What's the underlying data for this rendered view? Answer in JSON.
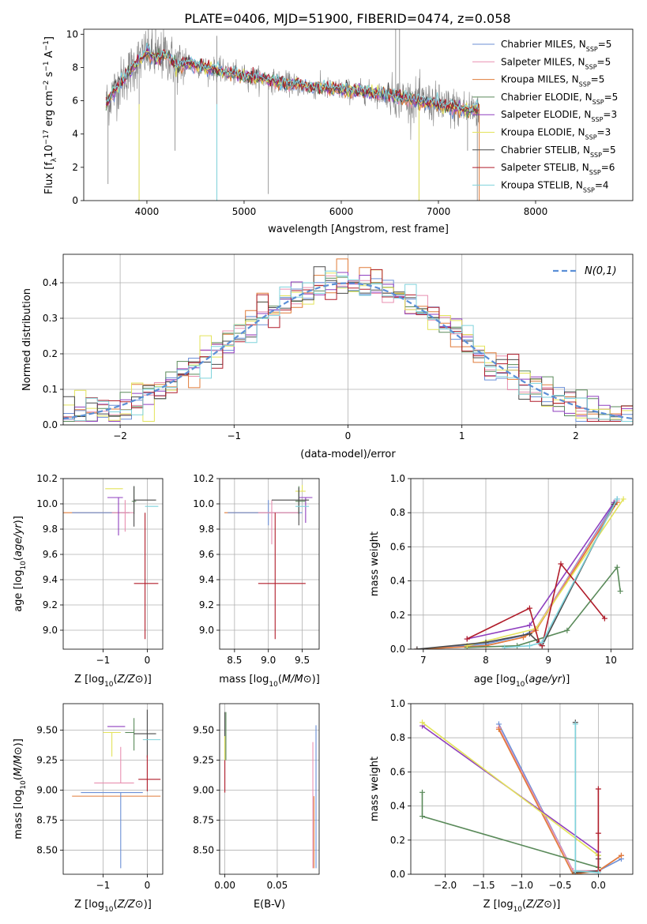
{
  "title": "PLATE=0406, MJD=51900, FIBERID=0474, z=0.058",
  "colors": {
    "blue": "#6b8fd6",
    "pink": "#e88fb0",
    "orange": "#e07b39",
    "green": "#5a8a5a",
    "purple": "#8f3fbf",
    "yellow": "#e3e35a",
    "dark": "#4a4a4a",
    "red": "#b01c2a",
    "cyan": "#7fd3dc",
    "data": "#808080",
    "normal": "#5b8fd6"
  },
  "chart_data": [
    {
      "id": "spectrum",
      "type": "line",
      "xlabel": "wavelength [Angstrom, rest frame]",
      "ylabel": "Flux [f_λ10^-17 erg cm^-2 s^-1 A^-1]",
      "xlim": [
        3350,
        9000
      ],
      "ylim": [
        0,
        10.3
      ],
      "xticks": [
        4000,
        5000,
        6000,
        7000,
        8000
      ],
      "yticks": [
        0,
        2,
        4,
        6,
        8,
        10
      ],
      "grid": false,
      "legend_position": "upper-right",
      "legend": [
        {
          "label": "Chabrier MILES, N",
          "sub": "SSP",
          "suffix": "=5",
          "color": "blue"
        },
        {
          "label": "Salpeter MILES, N",
          "sub": "SSP",
          "suffix": "=5",
          "color": "pink"
        },
        {
          "label": "Kroupa MILES, N",
          "sub": "SSP",
          "suffix": "=5",
          "color": "orange"
        },
        {
          "label": "Chabrier ELODIE, N",
          "sub": "SSP",
          "suffix": "=5",
          "color": "green"
        },
        {
          "label": "Salpeter ELODIE, N",
          "sub": "SSP",
          "suffix": "=3",
          "color": "purple"
        },
        {
          "label": "Kroupa ELODIE, N",
          "sub": "SSP",
          "suffix": "=3",
          "color": "yellow"
        },
        {
          "label": "Chabrier STELIB, N",
          "sub": "SSP",
          "suffix": "=5",
          "color": "dark"
        },
        {
          "label": "Salpeter STELIB, N",
          "sub": "SSP",
          "suffix": "=6",
          "color": "red"
        },
        {
          "label": "Kroupa STELIB, N",
          "sub": "SSP",
          "suffix": "=4",
          "color": "cyan"
        }
      ],
      "model_curve": {
        "x": [
          3580,
          3650,
          3720,
          3800,
          3880,
          3950,
          4000,
          4100,
          4200,
          4300,
          4400,
          4500,
          4700,
          4900,
          5100,
          5300,
          5500,
          5700,
          5900,
          6100,
          6300,
          6500,
          6700,
          6900,
          7100,
          7300,
          7420
        ],
        "y": [
          5.8,
          6.5,
          7.0,
          7.6,
          8.2,
          8.6,
          8.9,
          8.5,
          8.8,
          8.1,
          8.3,
          8.1,
          7.9,
          7.6,
          7.4,
          7.2,
          7.0,
          6.8,
          6.7,
          6.6,
          6.5,
          6.3,
          6.1,
          5.9,
          5.6,
          5.5,
          5.5
        ]
      },
      "observed_curve": {
        "x_start": 3580,
        "x_end": 7420,
        "y_noise_amp": 1.1,
        "spikes": [
          {
            "x": 3600,
            "y": 1.0
          },
          {
            "x": 3920,
            "y": 0
          },
          {
            "x": 4090,
            "y": 10.3
          },
          {
            "x": 4180,
            "y": 9.8
          },
          {
            "x": 4290,
            "y": 3.0
          },
          {
            "x": 4720,
            "y": 0
          },
          {
            "x": 4720,
            "y": 9.9
          },
          {
            "x": 5250,
            "y": 0.4
          },
          {
            "x": 6560,
            "y": 10.3
          },
          {
            "x": 6600,
            "y": 10.3
          },
          {
            "x": 6800,
            "y": 0
          },
          {
            "x": 7400,
            "y": 0
          },
          {
            "x": 7300,
            "y": 3.0
          }
        ]
      }
    },
    {
      "id": "residuals",
      "type": "histogram",
      "xlabel": "(data-model)/error",
      "ylabel": "Normed distribution",
      "xlim": [
        -2.5,
        2.5
      ],
      "ylim": [
        0,
        0.48
      ],
      "xticks": [
        -2,
        -1,
        0,
        1,
        2
      ],
      "yticks": [
        0.0,
        0.1,
        0.2,
        0.3,
        0.4
      ],
      "grid": true,
      "legend_position": "upper-right",
      "reference_label": "N(0,1)",
      "bin_width": 0.1,
      "bin_start": -2.5,
      "series_colors": [
        "blue",
        "pink",
        "orange",
        "green",
        "purple",
        "yellow",
        "dark",
        "red",
        "cyan"
      ]
    },
    {
      "id": "age-vs-Z",
      "type": "errorbar",
      "xlabel": "Z [log10(Z/Z⊙)]",
      "ylabel": "age  [log10(age/yr)]",
      "xlim": [
        -1.9,
        0.35
      ],
      "ylim": [
        8.85,
        10.2
      ],
      "xticks": [
        -1,
        0
      ],
      "yticks": [
        9.0,
        9.2,
        9.4,
        9.6,
        9.8,
        10.0,
        10.2
      ],
      "grid": true,
      "points": [
        {
          "color": "orange",
          "x": -0.7,
          "xerr": [
            1.8,
            0.3
          ],
          "y": 9.93,
          "yerr": [
            0.0,
            0.0
          ]
        },
        {
          "color": "blue",
          "x": -1.0,
          "xerr": [
            0.7,
            0.6
          ],
          "y": 9.93,
          "yerr": [
            0.0,
            0.0
          ]
        },
        {
          "color": "pink",
          "x": -0.5,
          "xerr": [
            0.3,
            0.2
          ],
          "y": 9.93,
          "yerr": [
            0.15,
            0.1
          ]
        },
        {
          "color": "yellow",
          "x": -0.8,
          "xerr": [
            0.15,
            0.25
          ],
          "y": 10.12,
          "yerr": [
            0.0,
            0.0
          ]
        },
        {
          "color": "purple",
          "x": -0.65,
          "xerr": [
            0.25,
            0.1
          ],
          "y": 10.05,
          "yerr": [
            0.3,
            0.0
          ]
        },
        {
          "color": "green",
          "x": -0.3,
          "xerr": [
            0.05,
            0.05
          ],
          "y": 10.02,
          "yerr": [
            0.1,
            0.12
          ]
        },
        {
          "color": "dark",
          "x": -0.3,
          "xerr": [
            0.0,
            0.0
          ],
          "y": 10.02,
          "yerr": [
            0.2,
            0.12
          ]
        },
        {
          "color": "dark",
          "x": 0.0,
          "xerr": [
            0.3,
            0.2
          ],
          "y": 10.03,
          "yerr": [
            0.0,
            0.0
          ]
        },
        {
          "color": "red",
          "x": -0.05,
          "xerr": [
            0.25,
            0.3
          ],
          "y": 9.37,
          "yerr": [
            0.44,
            0.56
          ]
        },
        {
          "color": "cyan",
          "x": 0.1,
          "xerr": [
            0.15,
            0.15
          ],
          "y": 9.98,
          "yerr": [
            0.0,
            0.0
          ]
        }
      ]
    },
    {
      "id": "age-vs-mass",
      "type": "errorbar",
      "xlabel": "mass [log10(M/M⊙)]",
      "ylabel": "",
      "xlim": [
        8.28,
        9.75
      ],
      "ylim": [
        8.85,
        10.2
      ],
      "xticks": [
        8.5,
        9.0,
        9.5
      ],
      "yticks": [
        9.0,
        9.2,
        9.4,
        9.6,
        9.8,
        10.0,
        10.2
      ],
      "grid": true,
      "points": [
        {
          "color": "orange",
          "x": 8.95,
          "xerr": [
            0.6,
            0.5
          ],
          "y": 9.93,
          "yerr": [
            0.0,
            0.0
          ]
        },
        {
          "color": "blue",
          "x": 9.0,
          "xerr": [
            0.6,
            0.5
          ],
          "y": 9.93,
          "yerr": [
            0.1,
            0.1
          ]
        },
        {
          "color": "pink",
          "x": 9.05,
          "xerr": [
            0.2,
            0.4
          ],
          "y": 9.93,
          "yerr": [
            0.25,
            0.1
          ]
        },
        {
          "color": "yellow",
          "x": 9.5,
          "xerr": [
            0.1,
            0.05
          ],
          "y": 10.1,
          "yerr": [
            0.0,
            0.05
          ]
        },
        {
          "color": "purple",
          "x": 9.55,
          "xerr": [
            0.1,
            0.1
          ],
          "y": 10.05,
          "yerr": [
            0.2,
            0.0
          ]
        },
        {
          "color": "green",
          "x": 9.45,
          "xerr": [
            0.05,
            0.1
          ],
          "y": 10.02,
          "yerr": [
            0.1,
            0.12
          ]
        },
        {
          "color": "dark",
          "x": 9.45,
          "xerr": [
            0.4,
            0.15
          ],
          "y": 10.03,
          "yerr": [
            0.2,
            0.1
          ]
        },
        {
          "color": "red",
          "x": 9.1,
          "xerr": [
            0.25,
            0.45
          ],
          "y": 9.37,
          "yerr": [
            0.44,
            0.56
          ]
        },
        {
          "color": "cyan",
          "x": 9.5,
          "xerr": [
            0.1,
            0.1
          ],
          "y": 9.98,
          "yerr": [
            0.0,
            0.0
          ]
        }
      ]
    },
    {
      "id": "weight-vs-age",
      "type": "line",
      "xlabel": "age  [log10(age/yr)]",
      "ylabel": "mass weight",
      "xlim": [
        6.8,
        10.35
      ],
      "ylim": [
        0,
        1.0
      ],
      "xticks": [
        7,
        8,
        9,
        10
      ],
      "yticks": [
        0.0,
        0.2,
        0.4,
        0.6,
        0.8,
        1.0
      ],
      "grid": true,
      "series": [
        {
          "color": "blue",
          "x": [
            6.9,
            8.0,
            8.6,
            8.8,
            10.1
          ],
          "y": [
            0.0,
            0.03,
            0.08,
            0.12,
            0.88
          ]
        },
        {
          "color": "pink",
          "x": [
            6.9,
            8.0,
            8.6,
            8.8,
            10.1
          ],
          "y": [
            0.0,
            0.02,
            0.07,
            0.12,
            0.87
          ]
        },
        {
          "color": "orange",
          "x": [
            6.9,
            8.0,
            8.6,
            8.8,
            10.1
          ],
          "y": [
            0.0,
            0.02,
            0.07,
            0.11,
            0.86
          ]
        },
        {
          "color": "green",
          "x": [
            7.7,
            8.5,
            9.3,
            10.1,
            10.15
          ],
          "y": [
            0.01,
            0.02,
            0.11,
            0.48,
            0.34
          ]
        },
        {
          "color": "purple",
          "x": [
            7.7,
            8.7,
            10.05
          ],
          "y": [
            0.06,
            0.14,
            0.86
          ]
        },
        {
          "color": "yellow",
          "x": [
            7.7,
            8.8,
            10.2
          ],
          "y": [
            0.02,
            0.12,
            0.88
          ]
        },
        {
          "color": "dark",
          "x": [
            6.9,
            8.0,
            8.7,
            8.9,
            10.05
          ],
          "y": [
            0.0,
            0.04,
            0.09,
            0.02,
            0.85
          ]
        },
        {
          "color": "red",
          "x": [
            7.7,
            8.7,
            8.85,
            8.9,
            9.2,
            9.9
          ],
          "y": [
            0.06,
            0.24,
            0.04,
            0.02,
            0.5,
            0.18
          ]
        },
        {
          "color": "cyan",
          "x": [
            8.3,
            8.7,
            8.9,
            10.1
          ],
          "y": [
            0.01,
            0.02,
            0.04,
            0.88
          ]
        }
      ]
    },
    {
      "id": "mass-vs-Z",
      "type": "errorbar",
      "xlabel": "Z [log10(Z/Z⊙)]",
      "ylabel": "mass [log10(M/M⊙)]",
      "xlim": [
        -1.9,
        0.35
      ],
      "ylim": [
        8.3,
        9.72
      ],
      "xticks": [
        -1,
        0
      ],
      "yticks": [
        8.5,
        8.75,
        9.0,
        9.25,
        9.5
      ],
      "grid": true,
      "points": [
        {
          "color": "orange",
          "x": -0.7,
          "xerr": [
            1.0,
            1.0
          ],
          "y": 8.95,
          "yerr": [
            0.0,
            0.0
          ]
        },
        {
          "color": "blue",
          "x": -0.6,
          "xerr": [
            0.9,
            0.5
          ],
          "y": 8.98,
          "yerr": [
            0.63,
            0.0
          ]
        },
        {
          "color": "pink",
          "x": -0.6,
          "xerr": [
            0.6,
            0.3
          ],
          "y": 9.06,
          "yerr": [
            0.0,
            0.3
          ]
        },
        {
          "color": "yellow",
          "x": -0.8,
          "xerr": [
            0.2,
            0.2
          ],
          "y": 9.48,
          "yerr": [
            0.2,
            0.0
          ]
        },
        {
          "color": "purple",
          "x": -0.6,
          "xerr": [
            0.3,
            0.1
          ],
          "y": 9.53,
          "yerr": [
            0.0,
            0.0
          ]
        },
        {
          "color": "green",
          "x": -0.3,
          "xerr": [
            0.2,
            0.0
          ],
          "y": 9.48,
          "yerr": [
            0.15,
            0.12
          ]
        },
        {
          "color": "dark",
          "x": 0.0,
          "xerr": [
            0.3,
            0.2
          ],
          "y": 9.47,
          "yerr": [
            0.2,
            0.2
          ]
        },
        {
          "color": "red",
          "x": 0.0,
          "xerr": [
            0.2,
            0.3
          ],
          "y": 9.09,
          "yerr": [
            0.1,
            0.2
          ]
        },
        {
          "color": "cyan",
          "x": 0.1,
          "xerr": [
            0.2,
            0.2
          ],
          "y": 9.42,
          "yerr": [
            0.0,
            0.0
          ]
        }
      ]
    },
    {
      "id": "mass-vs-EBV",
      "type": "errorbar",
      "xlabel": "E(B-V)",
      "ylabel": "",
      "xlim": [
        -0.005,
        0.09
      ],
      "ylim": [
        8.3,
        9.72
      ],
      "xticks": [
        0.0,
        0.05
      ],
      "yticks": [
        8.5,
        8.75,
        9.0,
        9.25,
        9.5
      ],
      "grid": true,
      "points": [
        {
          "color": "dark",
          "x": 0.0,
          "xerr": [
            0,
            0
          ],
          "y": 9.45,
          "yerr": [
            0.2,
            0.2
          ]
        },
        {
          "color": "green",
          "x": 0.001,
          "xerr": [
            0,
            0
          ],
          "y": 9.5,
          "yerr": [
            0.25,
            0.15
          ]
        },
        {
          "color": "red",
          "x": 0.0,
          "xerr": [
            0,
            0
          ],
          "y": 9.1,
          "yerr": [
            0.12,
            0.15
          ]
        },
        {
          "color": "yellow",
          "x": 0.0,
          "xerr": [
            0,
            0
          ],
          "y": 9.25,
          "yerr": [
            0.0,
            0.2
          ]
        },
        {
          "color": "orange",
          "x": 0.085,
          "xerr": [
            0,
            0
          ],
          "y": 8.95,
          "yerr": [
            0.6,
            0.0
          ]
        },
        {
          "color": "blue",
          "x": 0.087,
          "xerr": [
            0,
            0
          ],
          "y": 8.98,
          "yerr": [
            0.63,
            0.56
          ]
        },
        {
          "color": "pink",
          "x": 0.084,
          "xerr": [
            0,
            0
          ],
          "y": 8.9,
          "yerr": [
            0.55,
            0.5
          ]
        }
      ]
    },
    {
      "id": "weight-vs-Z",
      "type": "line",
      "xlabel": "Z [log10(Z/Z⊙)]",
      "ylabel": "mass weight",
      "xlim": [
        -2.45,
        0.45
      ],
      "ylim": [
        0,
        1.0
      ],
      "xticks": [
        -2.0,
        -1.5,
        -1.0,
        -0.5,
        0.0
      ],
      "yticks": [
        0.0,
        0.2,
        0.4,
        0.6,
        0.8,
        1.0
      ],
      "grid": true,
      "series": [
        {
          "color": "blue",
          "x": [
            -1.3,
            -0.33,
            0.0,
            0.3
          ],
          "y": [
            0.88,
            0.02,
            0.02,
            0.09
          ]
        },
        {
          "color": "pink",
          "x": [
            -1.3,
            -0.33,
            0.0,
            0.3
          ],
          "y": [
            0.86,
            0.02,
            0.02,
            0.11
          ]
        },
        {
          "color": "orange",
          "x": [
            -1.3,
            -0.33,
            0.0,
            0.3
          ],
          "y": [
            0.85,
            0.0,
            0.02,
            0.11
          ]
        },
        {
          "color": "green",
          "x": [
            -2.3,
            -2.3,
            0.0,
            0.0
          ],
          "y": [
            0.48,
            0.34,
            0.04,
            0.11
          ]
        },
        {
          "color": "purple",
          "x": [
            -2.3,
            0.0
          ],
          "y": [
            0.87,
            0.13
          ]
        },
        {
          "color": "yellow",
          "x": [
            -2.3,
            0.0
          ],
          "y": [
            0.89,
            0.11
          ]
        },
        {
          "color": "dark",
          "x": [
            -0.3,
            -0.3,
            0.0,
            0.0
          ],
          "y": [
            0.89,
            0.01,
            0.02,
            0.09
          ]
        },
        {
          "color": "red",
          "x": [
            0.0,
            0.0,
            0.0
          ],
          "y": [
            0.5,
            0.24,
            0.02
          ]
        },
        {
          "color": "cyan",
          "x": [
            -0.3,
            -0.3,
            0.0
          ],
          "y": [
            0.88,
            0.02,
            0.01
          ]
        }
      ]
    }
  ]
}
